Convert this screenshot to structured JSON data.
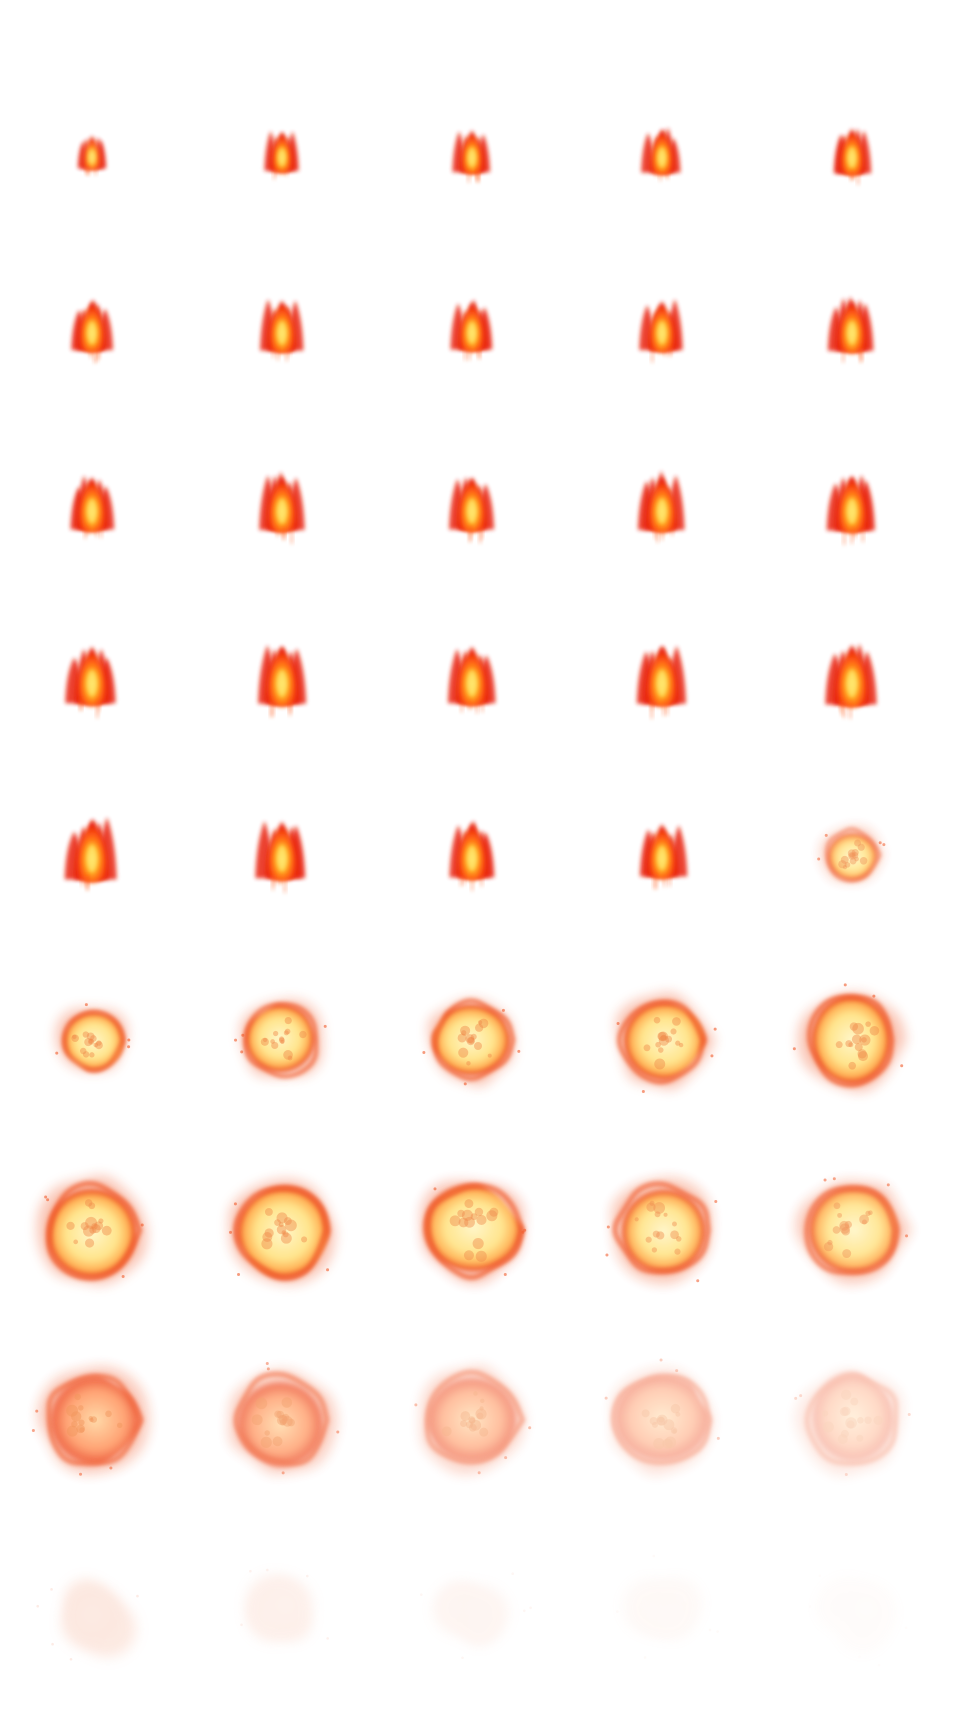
{
  "sheet": {
    "background": "#ffffff",
    "columns": 5,
    "rows": 9,
    "frame_count": 45,
    "palette": {
      "flame_outer": "#e8200a",
      "flame_mid": "#ff5a14",
      "flame_core": "#ffb020",
      "flame_hot": "#ffe870",
      "blast_rim": "#f05a2a",
      "blast_mid": "#ffb458",
      "blast_core": "#fff6c8",
      "smoke": "#f6b49a"
    },
    "frames": [
      {
        "kind": "flame",
        "size": 0.55,
        "opacity": 0.95
      },
      {
        "kind": "flame",
        "size": 0.65,
        "opacity": 1
      },
      {
        "kind": "flame",
        "size": 0.7,
        "opacity": 1
      },
      {
        "kind": "flame",
        "size": 0.72,
        "opacity": 1
      },
      {
        "kind": "flame",
        "size": 0.75,
        "opacity": 1
      },
      {
        "kind": "flame",
        "size": 0.82,
        "opacity": 1
      },
      {
        "kind": "flame",
        "size": 0.84,
        "opacity": 1
      },
      {
        "kind": "flame",
        "size": 0.8,
        "opacity": 1
      },
      {
        "kind": "flame",
        "size": 0.82,
        "opacity": 1
      },
      {
        "kind": "flame",
        "size": 0.85,
        "opacity": 1
      },
      {
        "kind": "flame",
        "size": 0.88,
        "opacity": 1
      },
      {
        "kind": "flame",
        "size": 0.9,
        "opacity": 1
      },
      {
        "kind": "flame",
        "size": 0.88,
        "opacity": 1
      },
      {
        "kind": "flame",
        "size": 0.9,
        "opacity": 1
      },
      {
        "kind": "flame",
        "size": 0.92,
        "opacity": 1
      },
      {
        "kind": "flame",
        "size": 0.95,
        "opacity": 1
      },
      {
        "kind": "flame",
        "size": 0.97,
        "opacity": 1
      },
      {
        "kind": "flame",
        "size": 0.95,
        "opacity": 1
      },
      {
        "kind": "flame",
        "size": 0.97,
        "opacity": 1
      },
      {
        "kind": "flame",
        "size": 1.0,
        "opacity": 1
      },
      {
        "kind": "flame",
        "size": 1.0,
        "opacity": 1
      },
      {
        "kind": "flame",
        "size": 0.95,
        "opacity": 1
      },
      {
        "kind": "flame",
        "size": 0.92,
        "opacity": 1
      },
      {
        "kind": "flame",
        "size": 0.88,
        "opacity": 1
      },
      {
        "kind": "burst",
        "size": 0.55,
        "opacity": 0.9
      },
      {
        "kind": "burst",
        "size": 0.66,
        "opacity": 1
      },
      {
        "kind": "burst",
        "size": 0.78,
        "opacity": 1
      },
      {
        "kind": "burst",
        "size": 0.84,
        "opacity": 1
      },
      {
        "kind": "burst",
        "size": 0.9,
        "opacity": 1
      },
      {
        "kind": "burst",
        "size": 0.95,
        "opacity": 1
      },
      {
        "kind": "burst",
        "size": 1.0,
        "opacity": 1
      },
      {
        "kind": "burst",
        "size": 1.0,
        "opacity": 1
      },
      {
        "kind": "burst",
        "size": 1.0,
        "opacity": 0.98
      },
      {
        "kind": "burst",
        "size": 1.0,
        "opacity": 0.95
      },
      {
        "kind": "burst",
        "size": 1.0,
        "opacity": 0.9
      },
      {
        "kind": "fade",
        "size": 1.0,
        "opacity": 0.9
      },
      {
        "kind": "fade",
        "size": 1.0,
        "opacity": 0.78
      },
      {
        "kind": "fade",
        "size": 1.0,
        "opacity": 0.62
      },
      {
        "kind": "fade",
        "size": 1.0,
        "opacity": 0.48
      },
      {
        "kind": "fade",
        "size": 1.0,
        "opacity": 0.36
      },
      {
        "kind": "smoke",
        "size": 1.0,
        "opacity": 0.3
      },
      {
        "kind": "smoke",
        "size": 1.0,
        "opacity": 0.2
      },
      {
        "kind": "smoke",
        "size": 1.0,
        "opacity": 0.13
      },
      {
        "kind": "smoke",
        "size": 1.0,
        "opacity": 0.08
      },
      {
        "kind": "smoke",
        "size": 1.0,
        "opacity": 0.04
      }
    ]
  }
}
